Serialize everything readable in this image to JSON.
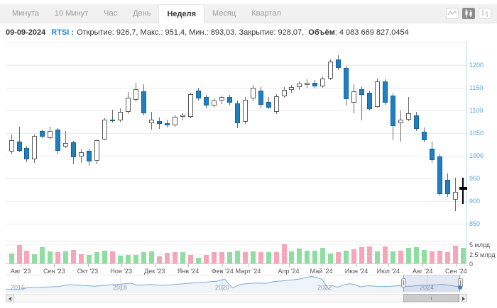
{
  "toolbar": {
    "tabs": [
      {
        "label": "Минута",
        "selected": false
      },
      {
        "label": "10 Минут",
        "selected": false
      },
      {
        "label": "Час",
        "selected": false
      },
      {
        "label": "День",
        "selected": false
      },
      {
        "label": "Неделя",
        "selected": true
      },
      {
        "label": "Месяц",
        "selected": false
      },
      {
        "label": "Квартал",
        "selected": false
      }
    ],
    "chart_type_buttons": [
      {
        "icon": "line-chart-icon",
        "selected": false
      },
      {
        "icon": "candlestick-icon",
        "selected": true
      },
      {
        "icon": "ohlc-bars-icon",
        "selected": false
      }
    ]
  },
  "info_bar": {
    "date": "09-09-2024",
    "symbol_label": "RTSI :",
    "ohlc_text": "Открытие: 926,7, Макс.: 951,4, Мин.: 893,03, Закрытие: 928,07,",
    "volume_label": "Объём",
    "volume_value": ": 4 083 669 827,0454"
  },
  "colors": {
    "grid": "#ececec",
    "axis_line": "#bcd8ee",
    "axis_label": "#58a6d8",
    "up_fill": "#ffffff",
    "up_border": "#58595b",
    "down_fill": "#1e7fc1",
    "down_border": "#1362a0",
    "wick": "#6b6b6b",
    "current": "#000000",
    "vol_up": "#90dda2",
    "vol_down": "#f7a6ba",
    "vol_zero_line": "#cfcfcf",
    "nav_line": "#7aabd4",
    "nav_fill": "rgba(122,171,212,0.13)",
    "nav_selection": "rgba(105,125,185,0.18)",
    "nav_selection_border": "#96a3c6",
    "nav_dot": "#3f7fd0"
  },
  "chart_data": {
    "type": "candlestick",
    "symbol": "RTSI",
    "timeframe": "Неделя",
    "y_axis": {
      "gridlines": [
        1250,
        1200,
        1150,
        1100,
        1050,
        1000,
        950,
        900,
        850
      ],
      "labeled_ticks": [
        1200,
        1150,
        1100,
        1050,
        1000,
        950,
        900,
        850
      ]
    },
    "x_axis": {
      "months": [
        {
          "label": "Авг '23",
          "week": 1.2
        },
        {
          "label": "Сен '23",
          "week": 5.5
        },
        {
          "label": "Окт '23",
          "week": 9.8
        },
        {
          "label": "Ноя '23",
          "week": 14.1
        },
        {
          "label": "Дек '23",
          "week": 18.4
        },
        {
          "label": "Янв '24",
          "week": 22.7
        },
        {
          "label": "Фев '24",
          "week": 27.1
        },
        {
          "label": "Март '24",
          "week": 30.4
        },
        {
          "label": "Апр '24",
          "week": 35.6
        },
        {
          "label": "Май '24",
          "week": 39.8
        },
        {
          "label": "Июн '24",
          "week": 44.3
        },
        {
          "label": "Июл '24",
          "week": 48.4
        },
        {
          "label": "Авг '24",
          "week": 52.8
        },
        {
          "label": "Сен '24",
          "week": 57.1
        }
      ]
    },
    "current_index": 58,
    "candles": [
      [
        1008,
        1046,
        1003,
        1034
      ],
      [
        1031,
        1064,
        1007,
        1010
      ],
      [
        1017,
        1021,
        985,
        992
      ],
      [
        992,
        1047,
        984,
        1043
      ],
      [
        1054,
        1058,
        1038,
        1041
      ],
      [
        1038,
        1063,
        1036,
        1055
      ],
      [
        1058,
        1061,
        1002,
        1010
      ],
      [
        1020,
        1054,
        1017,
        1028
      ],
      [
        1029,
        1032,
        981,
        997
      ],
      [
        998,
        1014,
        984,
        1007
      ],
      [
        1010,
        1015,
        977,
        987
      ],
      [
        988,
        1036,
        981,
        1034
      ],
      [
        1036,
        1082,
        1034,
        1079
      ],
      [
        1080,
        1101,
        1073,
        1076
      ],
      [
        1078,
        1104,
        1075,
        1096
      ],
      [
        1096,
        1140,
        1091,
        1128
      ],
      [
        1123,
        1160,
        1118,
        1146
      ],
      [
        1142,
        1157,
        1089,
        1093
      ],
      [
        1072,
        1096,
        1058,
        1079
      ],
      [
        1076,
        1084,
        1059,
        1070
      ],
      [
        1071,
        1079,
        1062,
        1066
      ],
      [
        1066,
        1091,
        1063,
        1086
      ],
      [
        1086,
        1094,
        1078,
        1091
      ],
      [
        1086,
        1139,
        1082,
        1135
      ],
      [
        1143,
        1149,
        1121,
        1126
      ],
      [
        1129,
        1134,
        1104,
        1110
      ],
      [
        1110,
        1126,
        1106,
        1122
      ],
      [
        1121,
        1133,
        1114,
        1129
      ],
      [
        1129,
        1134,
        1111,
        1116
      ],
      [
        1116,
        1121,
        1060,
        1071
      ],
      [
        1074,
        1129,
        1069,
        1123
      ],
      [
        1126,
        1156,
        1120,
        1149
      ],
      [
        1143,
        1151,
        1104,
        1112
      ],
      [
        1118,
        1129,
        1102,
        1106
      ],
      [
        1096,
        1135,
        1091,
        1131
      ],
      [
        1131,
        1151,
        1127,
        1145
      ],
      [
        1145,
        1156,
        1138,
        1151
      ],
      [
        1151,
        1164,
        1144,
        1159
      ],
      [
        1156,
        1169,
        1150,
        1161
      ],
      [
        1161,
        1167,
        1148,
        1153
      ],
      [
        1153,
        1174,
        1149,
        1170
      ],
      [
        1170,
        1212,
        1166,
        1208
      ],
      [
        1212,
        1221,
        1188,
        1193
      ],
      [
        1193,
        1198,
        1110,
        1124
      ],
      [
        1116,
        1158,
        1093,
        1142
      ],
      [
        1147,
        1152,
        1078,
        1134
      ],
      [
        1139,
        1144,
        1100,
        1103
      ],
      [
        1108,
        1170,
        1105,
        1163
      ],
      [
        1164,
        1169,
        1112,
        1116
      ],
      [
        1132,
        1137,
        1034,
        1065
      ],
      [
        1071,
        1100,
        1031,
        1080
      ],
      [
        1080,
        1129,
        1076,
        1094
      ],
      [
        1089,
        1096,
        1054,
        1059
      ],
      [
        1052,
        1062,
        1030,
        1034
      ],
      [
        1015,
        1031,
        984,
        990
      ],
      [
        998,
        1002,
        912,
        915
      ],
      [
        946,
        961,
        909,
        915
      ],
      [
        902,
        951,
        878,
        920
      ],
      [
        926.7,
        951.4,
        893.03,
        928.07
      ]
    ],
    "volume": {
      "unit": "млрд",
      "ticks": [
        {
          "label": "5 млрд",
          "value": 5
        },
        {
          "label": "2.5 млрд",
          "value": 2.5
        },
        {
          "label": "0",
          "value": 0
        }
      ],
      "bars": [
        [
          2.6,
          "g"
        ],
        [
          4.8,
          "p"
        ],
        [
          3.4,
          "p"
        ],
        [
          2.5,
          "g"
        ],
        [
          4.2,
          "g"
        ],
        [
          3.2,
          "g"
        ],
        [
          3.0,
          "p"
        ],
        [
          3.1,
          "g"
        ],
        [
          3.6,
          "p"
        ],
        [
          2.4,
          "p"
        ],
        [
          2.2,
          "g"
        ],
        [
          2.9,
          "g"
        ],
        [
          3.3,
          "g"
        ],
        [
          3.1,
          "p"
        ],
        [
          2.1,
          "g"
        ],
        [
          2.2,
          "g"
        ],
        [
          2.3,
          "g"
        ],
        [
          3.0,
          "g"
        ],
        [
          3.1,
          "g"
        ],
        [
          1.9,
          "p"
        ],
        [
          2.8,
          "p"
        ],
        [
          2.9,
          "p"
        ],
        [
          3.0,
          "g"
        ],
        [
          2.2,
          "p"
        ],
        [
          1.4,
          "g"
        ],
        [
          2.3,
          "p"
        ],
        [
          2.9,
          "p"
        ],
        [
          3.0,
          "p"
        ],
        [
          2.9,
          "g"
        ],
        [
          3.3,
          "g"
        ],
        [
          2.9,
          "p"
        ],
        [
          3.1,
          "g"
        ],
        [
          2.9,
          "p"
        ],
        [
          3.0,
          "g"
        ],
        [
          2.9,
          "p"
        ],
        [
          5.0,
          "p"
        ],
        [
          3.2,
          "g"
        ],
        [
          3.9,
          "g"
        ],
        [
          3.3,
          "g"
        ],
        [
          3.4,
          "g"
        ],
        [
          4.1,
          "g"
        ],
        [
          2.6,
          "g"
        ],
        [
          2.9,
          "p"
        ],
        [
          3.3,
          "g"
        ],
        [
          3.7,
          "p"
        ],
        [
          4.3,
          "p"
        ],
        [
          4.4,
          "p"
        ],
        [
          3.1,
          "g"
        ],
        [
          4.4,
          "p"
        ],
        [
          3.2,
          "g"
        ],
        [
          3.3,
          "p"
        ],
        [
          4.1,
          "g"
        ],
        [
          4.3,
          "g"
        ],
        [
          3.5,
          "g"
        ],
        [
          3.2,
          "p"
        ],
        [
          3.3,
          "p"
        ],
        [
          2.9,
          "p"
        ],
        [
          4.6,
          "p"
        ],
        [
          4.1,
          "g"
        ]
      ]
    },
    "navigator": {
      "years": [
        2016,
        2018,
        2020,
        2022,
        2024
      ],
      "points": [
        [
          2015.77,
          760
        ],
        [
          2016.0,
          720
        ],
        [
          2016.2,
          880
        ],
        [
          2016.5,
          930
        ],
        [
          2016.8,
          990
        ],
        [
          2017.0,
          1150
        ],
        [
          2017.25,
          1090
        ],
        [
          2017.5,
          1020
        ],
        [
          2017.8,
          1130
        ],
        [
          2018.0,
          1190
        ],
        [
          2018.2,
          1280
        ],
        [
          2018.35,
          1100
        ],
        [
          2018.6,
          1170
        ],
        [
          2018.8,
          1090
        ],
        [
          2019.0,
          1130
        ],
        [
          2019.3,
          1260
        ],
        [
          2019.6,
          1340
        ],
        [
          2019.9,
          1450
        ],
        [
          2020.05,
          1630
        ],
        [
          2020.2,
          870
        ],
        [
          2020.35,
          1160
        ],
        [
          2020.5,
          1260
        ],
        [
          2020.7,
          1290
        ],
        [
          2020.85,
          1260
        ],
        [
          2021.0,
          1410
        ],
        [
          2021.25,
          1500
        ],
        [
          2021.5,
          1630
        ],
        [
          2021.75,
          1870
        ],
        [
          2021.85,
          1760
        ],
        [
          2021.95,
          1620
        ],
        [
          2022.08,
          760
        ],
        [
          2022.15,
          1080
        ],
        [
          2022.25,
          930
        ],
        [
          2022.4,
          1140
        ],
        [
          2022.5,
          1240
        ],
        [
          2022.6,
          1150
        ],
        [
          2022.7,
          960
        ],
        [
          2022.85,
          1060
        ],
        [
          2023.0,
          1010
        ],
        [
          2023.15,
          980
        ],
        [
          2023.3,
          1020
        ],
        [
          2023.45,
          1060
        ],
        [
          2023.58,
          1020
        ],
        [
          2023.7,
          1010
        ],
        [
          2023.85,
          1090
        ],
        [
          2024.0,
          1095
        ],
        [
          2024.1,
          1120
        ],
        [
          2024.2,
          1140
        ],
        [
          2024.3,
          1180
        ],
        [
          2024.4,
          1120
        ],
        [
          2024.5,
          1060
        ],
        [
          2024.6,
          990
        ],
        [
          2024.65,
          930
        ]
      ]
    }
  }
}
